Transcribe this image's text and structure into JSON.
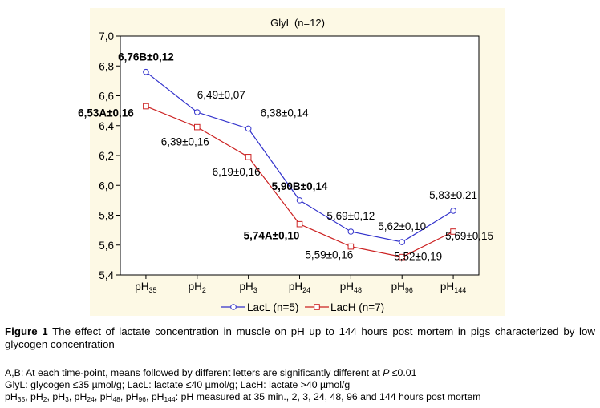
{
  "chart_data": {
    "type": "line",
    "title": "GlyL (n=12)",
    "categories": [
      "pH35",
      "pH2",
      "pH3",
      "pH24",
      "pH48",
      "pH96",
      "pH144"
    ],
    "x_ticks": [
      {
        "main": "pH",
        "sub": "35"
      },
      {
        "main": "pH",
        "sub": "2"
      },
      {
        "main": "pH",
        "sub": "3"
      },
      {
        "main": "pH",
        "sub": "24"
      },
      {
        "main": "pH",
        "sub": "48"
      },
      {
        "main": "pH",
        "sub": "96"
      },
      {
        "main": "pH",
        "sub": "144"
      }
    ],
    "ylim": [
      5.4,
      7.0
    ],
    "yticks": [
      5.4,
      5.6,
      5.8,
      6.0,
      6.2,
      6.4,
      6.6,
      6.8,
      7.0
    ],
    "ytick_labels": [
      "5,4",
      "5,6",
      "5,8",
      "6,0",
      "6,2",
      "6,4",
      "6,6",
      "6,8",
      "7,0"
    ],
    "grid": false,
    "legend_position": "bottom",
    "series": [
      {
        "name": "LacL (n=5)",
        "color": "#3333cc",
        "marker": "circle",
        "values": [
          6.76,
          6.49,
          6.38,
          5.9,
          5.69,
          5.62,
          5.83
        ],
        "labels": [
          "6,76B±0,12",
          "6,49±0,07",
          "6,38±0,14",
          "5,90B±0,14",
          "5,69±0,12",
          "5,62±0,10",
          "5,83±0,21"
        ],
        "label_bold": [
          true,
          false,
          false,
          true,
          false,
          false,
          false
        ]
      },
      {
        "name": "LacH (n=7)",
        "color": "#cc2222",
        "marker": "square",
        "values": [
          6.53,
          6.39,
          6.19,
          5.74,
          5.59,
          5.52,
          5.69
        ],
        "labels": [
          "6,53A±0,16",
          "6,39±0,16",
          "6,19±0,16",
          "5,74A±0,10",
          "5,59±0,16",
          "5,52±0,19",
          "5,69±0,15"
        ],
        "label_bold": [
          true,
          false,
          false,
          true,
          false,
          false,
          false
        ]
      }
    ]
  },
  "caption": {
    "label": "Figure 1",
    "text": "The effect of lactate concentration in muscle on pH up to 144 hours post mortem in pigs characterized by low glycogen concentration"
  },
  "notes": {
    "line1_prefix": "A,B: At each time-point, means followed by different letters are significantly different at ",
    "line1_p": "P",
    "line1_suffix": " ≤0.01",
    "line2": "GlyL: glycogen ≤35 µmol/g; LacL: lactate ≤40 µmol/g; LacH: lactate >40 µmol/g",
    "line3_suffix": ": pH measured at 35 min., 2, 3, 24, 48, 96 and 144 hours post mortem"
  },
  "colors": {
    "plot_background": "#fdf9e5",
    "axis": "#000000"
  }
}
